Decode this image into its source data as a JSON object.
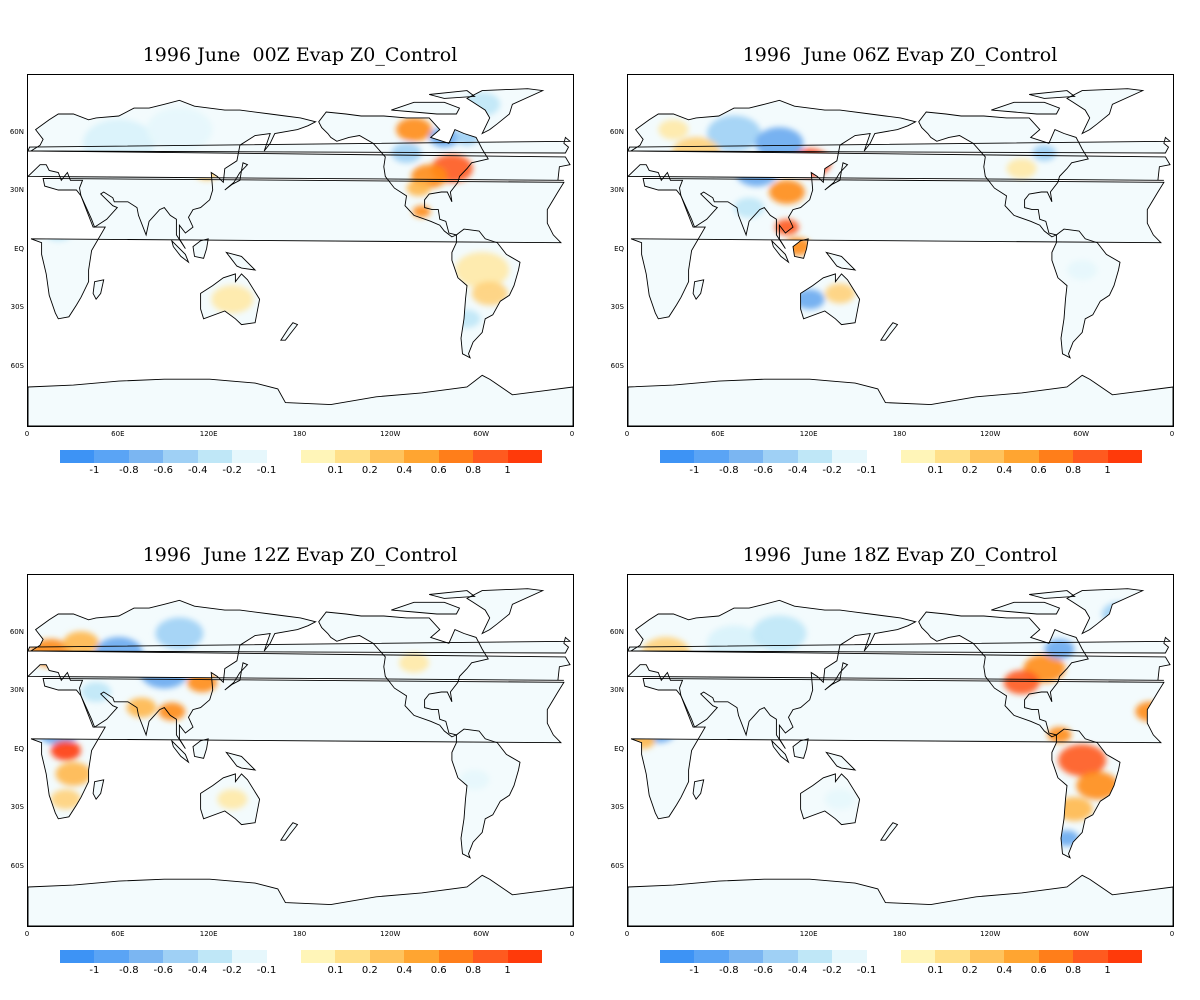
{
  "panels": [
    {
      "title": "1996 June  00Z Evap Z0_Control",
      "col": 0,
      "row": 0,
      "hotspots": [
        {
          "lon": 280,
          "lat": 42,
          "r": 14,
          "c": "#ff5a1f"
        },
        {
          "lon": 265,
          "lat": 38,
          "r": 12,
          "c": "#ff8c1a"
        },
        {
          "lon": 258,
          "lat": 32,
          "r": 8,
          "c": "#ffb84d"
        },
        {
          "lon": 255,
          "lat": 62,
          "r": 12,
          "c": "#ff8c1a"
        },
        {
          "lon": 275,
          "lat": 58,
          "r": 10,
          "c": "#6aaaf0"
        },
        {
          "lon": 290,
          "lat": 58,
          "r": 8,
          "c": "#9fd0f5"
        },
        {
          "lon": 250,
          "lat": 50,
          "r": 10,
          "c": "#9fd0f5"
        },
        {
          "lon": 118,
          "lat": 40,
          "r": 8,
          "c": "#ffd27a"
        },
        {
          "lon": 300,
          "lat": -10,
          "r": 18,
          "c": "#ffe9a6"
        },
        {
          "lon": 305,
          "lat": -22,
          "r": 12,
          "c": "#ffd27a"
        },
        {
          "lon": 290,
          "lat": -35,
          "r": 9,
          "c": "#bfe7f7"
        },
        {
          "lon": 60,
          "lat": 55,
          "r": 24,
          "c": "#d8f2fb"
        },
        {
          "lon": 100,
          "lat": 62,
          "r": 22,
          "c": "#e6f7fc"
        },
        {
          "lon": 135,
          "lat": -25,
          "r": 14,
          "c": "#ffe9a6"
        },
        {
          "lon": 20,
          "lat": 10,
          "r": 10,
          "c": "#bfe7f7"
        },
        {
          "lon": 300,
          "lat": 75,
          "r": 12,
          "c": "#bfe7f7"
        },
        {
          "lon": 260,
          "lat": 20,
          "r": 6,
          "c": "#ff8c1a"
        }
      ]
    },
    {
      "title": "1996  June 06Z Evap Z0_Control",
      "col": 1,
      "row": 0,
      "hotspots": [
        {
          "lon": 120,
          "lat": 45,
          "r": 14,
          "c": "#ff3a0a"
        },
        {
          "lon": 105,
          "lat": 30,
          "r": 12,
          "c": "#ff8c1a"
        },
        {
          "lon": 85,
          "lat": 40,
          "r": 14,
          "c": "#6aaaf0"
        },
        {
          "lon": 70,
          "lat": 60,
          "r": 18,
          "c": "#9fd0f5"
        },
        {
          "lon": 100,
          "lat": 55,
          "r": 16,
          "c": "#6aaaf0"
        },
        {
          "lon": 45,
          "lat": 50,
          "r": 16,
          "c": "#ffd27a"
        },
        {
          "lon": 105,
          "lat": 12,
          "r": 8,
          "c": "#ff5a1f"
        },
        {
          "lon": 112,
          "lat": 2,
          "r": 9,
          "c": "#ff8c1a"
        },
        {
          "lon": 125,
          "lat": -5,
          "r": 7,
          "c": "#ffb84d"
        },
        {
          "lon": 140,
          "lat": -22,
          "r": 10,
          "c": "#ffd27a"
        },
        {
          "lon": 120,
          "lat": -25,
          "r": 10,
          "c": "#6aaaf0"
        },
        {
          "lon": 80,
          "lat": 22,
          "r": 10,
          "c": "#bfe7f7"
        },
        {
          "lon": 30,
          "lat": 62,
          "r": 10,
          "c": "#ffe9a6"
        },
        {
          "lon": 260,
          "lat": 42,
          "r": 10,
          "c": "#ffe9a6"
        },
        {
          "lon": 275,
          "lat": 50,
          "r": 8,
          "c": "#9fd0f5"
        },
        {
          "lon": 300,
          "lat": -10,
          "r": 10,
          "c": "#e6f7fc"
        }
      ]
    },
    {
      "title": "1996  June 12Z Evap Z0_Control",
      "col": 0,
      "row": 1,
      "hotspots": [
        {
          "lon": 15,
          "lat": 50,
          "r": 14,
          "c": "#ff8c1a"
        },
        {
          "lon": 35,
          "lat": 55,
          "r": 12,
          "c": "#ffb84d"
        },
        {
          "lon": 60,
          "lat": 50,
          "r": 16,
          "c": "#6aaaf0"
        },
        {
          "lon": 90,
          "lat": 40,
          "r": 16,
          "c": "#6aaaf0"
        },
        {
          "lon": 100,
          "lat": 60,
          "r": 16,
          "c": "#9fd0f5"
        },
        {
          "lon": 115,
          "lat": 35,
          "r": 10,
          "c": "#ff8c1a"
        },
        {
          "lon": 75,
          "lat": 22,
          "r": 10,
          "c": "#ffb84d"
        },
        {
          "lon": 95,
          "lat": 20,
          "r": 9,
          "c": "#ff8c1a"
        },
        {
          "lon": 20,
          "lat": 10,
          "r": 14,
          "c": "#6aaaf0"
        },
        {
          "lon": 25,
          "lat": 0,
          "r": 10,
          "c": "#ff3a0a"
        },
        {
          "lon": 30,
          "lat": -12,
          "r": 12,
          "c": "#ffb84d"
        },
        {
          "lon": 25,
          "lat": -25,
          "r": 10,
          "c": "#ffd27a"
        },
        {
          "lon": 135,
          "lat": -25,
          "r": 10,
          "c": "#ffe9a6"
        },
        {
          "lon": 255,
          "lat": 45,
          "r": 10,
          "c": "#ffe9a6"
        },
        {
          "lon": 295,
          "lat": -15,
          "r": 10,
          "c": "#e6f7fc"
        },
        {
          "lon": 45,
          "lat": 30,
          "r": 10,
          "c": "#bfe7f7"
        }
      ]
    },
    {
      "title": "1996  June 18Z Evap Z0_Control",
      "col": 1,
      "row": 1,
      "hotspots": [
        {
          "lon": 275,
          "lat": 42,
          "r": 14,
          "c": "#ff8c1a"
        },
        {
          "lon": 260,
          "lat": 35,
          "r": 12,
          "c": "#ff5a1f"
        },
        {
          "lon": 285,
          "lat": 52,
          "r": 10,
          "c": "#6aaaf0"
        },
        {
          "lon": 300,
          "lat": -5,
          "r": 16,
          "c": "#ff5a1f"
        },
        {
          "lon": 310,
          "lat": -18,
          "r": 14,
          "c": "#ff8c1a"
        },
        {
          "lon": 295,
          "lat": -30,
          "r": 12,
          "c": "#ffb84d"
        },
        {
          "lon": 290,
          "lat": -45,
          "r": 8,
          "c": "#6aaaf0"
        },
        {
          "lon": 285,
          "lat": 8,
          "r": 8,
          "c": "#ff8c1a"
        },
        {
          "lon": 20,
          "lat": 10,
          "r": 12,
          "c": "#6aaaf0"
        },
        {
          "lon": 10,
          "lat": 5,
          "r": 8,
          "c": "#ffb84d"
        },
        {
          "lon": 345,
          "lat": 20,
          "r": 10,
          "c": "#ff8c1a"
        },
        {
          "lon": 25,
          "lat": 50,
          "r": 16,
          "c": "#ffd27a"
        },
        {
          "lon": 70,
          "lat": 55,
          "r": 18,
          "c": "#d8f2fb"
        },
        {
          "lon": 100,
          "lat": 60,
          "r": 18,
          "c": "#bfe7f7"
        },
        {
          "lon": 140,
          "lat": -25,
          "r": 10,
          "c": "#e6f7fc"
        },
        {
          "lon": 325,
          "lat": 70,
          "r": 12,
          "c": "#9fd0f5"
        }
      ]
    }
  ],
  "map_axes": {
    "lat_labels": [
      {
        "lat": 60,
        "label": "60N"
      },
      {
        "lat": 30,
        "label": "30N"
      },
      {
        "lat": 0,
        "label": "EQ"
      },
      {
        "lat": -30,
        "label": "30S"
      },
      {
        "lat": -60,
        "label": "60S"
      }
    ],
    "lon_labels": [
      {
        "lon": 0,
        "label": "0"
      },
      {
        "lon": 60,
        "label": "60E"
      },
      {
        "lon": 120,
        "label": "120E"
      },
      {
        "lon": 180,
        "label": "180"
      },
      {
        "lon": 240,
        "label": "120W"
      },
      {
        "lon": 300,
        "label": "60W"
      },
      {
        "lon": 360,
        "label": "0"
      }
    ],
    "lat_range": [
      -90,
      90
    ],
    "lon_range": [
      0,
      360
    ]
  },
  "colorbar": {
    "colors": [
      "#3d93f5",
      "#5aa4f5",
      "#7bb6f2",
      "#9fd0f5",
      "#bfe7f7",
      "#e6f7fc",
      "#ffffff",
      "#fff5b8",
      "#ffe08a",
      "#ffc35c",
      "#ffa531",
      "#ff7e1a",
      "#ff5a1f",
      "#ff3a0a"
    ],
    "labels": [
      "-1",
      "-0.8",
      "-0.6",
      "-0.4",
      "-0.2",
      "-0.1",
      "0.1",
      "0.2",
      "0.4",
      "0.6",
      "0.8",
      "1"
    ]
  },
  "land_color": "#f3fbfd"
}
